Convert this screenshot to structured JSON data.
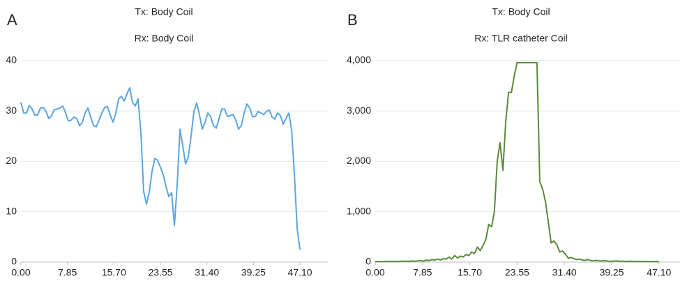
{
  "chart_data": [
    {
      "type": "line",
      "panel_label": "A",
      "title": "Tx: Body Coil",
      "subtitle": "Rx: Body Coil",
      "color": "#5aa5e0",
      "grid": true,
      "xlim": [
        0,
        51.8
      ],
      "ylim": [
        0,
        40
      ],
      "xticks": [
        {
          "value": 0,
          "label": "0.00"
        },
        {
          "value": 7.85,
          "label": "7.85"
        },
        {
          "value": 15.7,
          "label": "15.70"
        },
        {
          "value": 23.55,
          "label": "23.55"
        },
        {
          "value": 31.4,
          "label": "31.40"
        },
        {
          "value": 39.25,
          "label": "39.25"
        },
        {
          "value": 47.1,
          "label": "47.10"
        }
      ],
      "yticks": [
        0,
        10,
        20,
        30,
        40
      ],
      "x": [
        0,
        0.47,
        0.94,
        1.41,
        1.88,
        2.36,
        2.83,
        3.3,
        3.77,
        4.24,
        4.71,
        5.18,
        5.65,
        6.12,
        6.59,
        7.07,
        7.54,
        8.01,
        8.48,
        8.95,
        9.42,
        9.89,
        10.36,
        10.83,
        11.3,
        11.78,
        12.25,
        12.72,
        13.19,
        13.66,
        14.13,
        14.6,
        15.07,
        15.54,
        16.01,
        16.49,
        16.96,
        17.43,
        17.9,
        18.37,
        18.84,
        19.31,
        19.78,
        20.25,
        20.72,
        21.2,
        21.67,
        22.14,
        22.61,
        23.08,
        23.55,
        24.02,
        24.49,
        24.96,
        25.43,
        25.91,
        26.38,
        26.85,
        27.32,
        27.79,
        28.26,
        28.73,
        29.2,
        29.67,
        30.14,
        30.62,
        31.09,
        31.56,
        32.03,
        32.5,
        32.97,
        33.44,
        33.91,
        34.38,
        34.85,
        35.33,
        35.8,
        36.27,
        36.74,
        37.21,
        37.68,
        38.15,
        38.62,
        39.09,
        39.56,
        40.04,
        40.51,
        40.98,
        41.45,
        41.92,
        42.39,
        42.86,
        43.33,
        43.8,
        44.27,
        44.75,
        45.22,
        45.69,
        46.16,
        46.63,
        47.1
      ],
      "values": [
        31.7,
        29.6,
        29.6,
        31.1,
        30.4,
        29.2,
        29.2,
        30.6,
        30.7,
        29.9,
        28.5,
        29.1,
        30.3,
        30.4,
        30.6,
        31,
        29.6,
        28,
        28.2,
        28.8,
        28.5,
        27.1,
        27.7,
        29.6,
        30.6,
        28.8,
        27.1,
        26.9,
        28.2,
        29.6,
        30.7,
        30.9,
        29.2,
        27.8,
        29.5,
        32.4,
        32.9,
        32,
        33.4,
        34.6,
        31.7,
        31,
        32.4,
        25.7,
        14,
        11.5,
        14,
        18.1,
        20.6,
        20.2,
        18.8,
        17.4,
        15,
        13,
        13.8,
        7.3,
        15.4,
        26.4,
        23,
        19.5,
        20.9,
        25.1,
        29.9,
        31.6,
        29.2,
        26.4,
        27.8,
        29.6,
        28.9,
        27.1,
        26.6,
        28.5,
        30.4,
        30.4,
        28.9,
        29.1,
        29.3,
        28.2,
        26.4,
        27.1,
        29.6,
        31.4,
        30.6,
        28.9,
        28.9,
        29.9,
        29.6,
        29.3,
        29.9,
        30.2,
        28.8,
        28.4,
        29.6,
        29.1,
        27.4,
        28.5,
        29.6,
        26.2,
        17.4,
        6.6,
        2.5
      ]
    },
    {
      "type": "line",
      "panel_label": "B",
      "title": "Tx: Body Coil",
      "subtitle": "Rx: TLR catheter Coil",
      "color": "#5a8a3a",
      "grid": true,
      "xlim": [
        0,
        50.6
      ],
      "ylim": [
        0,
        4000
      ],
      "xticks": [
        {
          "value": 0,
          "label": "0.00"
        },
        {
          "value": 7.85,
          "label": "7.85"
        },
        {
          "value": 15.7,
          "label": "15.70"
        },
        {
          "value": 23.55,
          "label": "23.55"
        },
        {
          "value": 31.4,
          "label": "31.40"
        },
        {
          "value": 39.25,
          "label": "39.25"
        },
        {
          "value": 47.1,
          "label": "47.10"
        }
      ],
      "yticks": [
        0,
        {
          "value": 1000,
          "label": "1,000"
        },
        {
          "value": 2000,
          "label": "2,000"
        },
        {
          "value": 3000,
          "label": "3,000"
        },
        {
          "value": 4000,
          "label": "4,000"
        }
      ],
      "x": [
        0,
        0.47,
        0.94,
        1.41,
        1.88,
        2.36,
        2.83,
        3.3,
        3.77,
        4.24,
        4.71,
        5.18,
        5.65,
        6.12,
        6.59,
        7.07,
        7.54,
        8.01,
        8.48,
        8.95,
        9.42,
        9.89,
        10.36,
        10.83,
        11.3,
        11.78,
        12.25,
        12.72,
        13.19,
        13.66,
        14.13,
        14.6,
        15.07,
        15.54,
        16.01,
        16.49,
        16.96,
        17.43,
        17.9,
        18.37,
        18.84,
        19.31,
        19.78,
        20.25,
        20.72,
        21.2,
        21.67,
        22.14,
        22.61,
        23.08,
        23.55,
        24.02,
        24.49,
        24.96,
        25.43,
        25.91,
        26.38,
        26.85,
        27.32,
        27.79,
        28.26,
        28.73,
        29.2,
        29.67,
        30.14,
        30.62,
        31.09,
        31.56,
        32.03,
        32.5,
        32.97,
        33.44,
        33.91,
        34.38,
        34.85,
        35.33,
        35.8,
        36.27,
        36.74,
        37.21,
        37.68,
        38.15,
        38.62,
        39.09,
        39.56,
        40.04,
        40.51,
        40.98,
        41.45,
        41.92,
        42.39,
        42.86,
        43.33,
        43.8,
        44.27,
        44.75,
        45.22,
        45.69,
        46.16,
        46.63,
        47.1
      ],
      "values": [
        10,
        12,
        8,
        10,
        15,
        12,
        10,
        14,
        12,
        18,
        15,
        20,
        15,
        22,
        18,
        25,
        30,
        20,
        40,
        30,
        50,
        40,
        60,
        40,
        70,
        60,
        100,
        60,
        130,
        80,
        120,
        100,
        150,
        130,
        200,
        170,
        300,
        230,
        330,
        450,
        750,
        700,
        1000,
        2000,
        2370,
        1820,
        2800,
        3370,
        3370,
        3700,
        3960,
        3960,
        3960,
        3960,
        3960,
        3960,
        3960,
        3960,
        1600,
        1450,
        1200,
        800,
        380,
        420,
        350,
        200,
        220,
        160,
        80,
        90,
        70,
        50,
        60,
        40,
        35,
        50,
        30,
        25,
        35,
        20,
        25,
        30,
        20,
        15,
        20,
        25,
        15,
        20,
        12,
        15,
        18,
        10,
        12,
        15,
        10,
        12,
        10,
        8,
        12,
        10,
        8
      ]
    }
  ]
}
